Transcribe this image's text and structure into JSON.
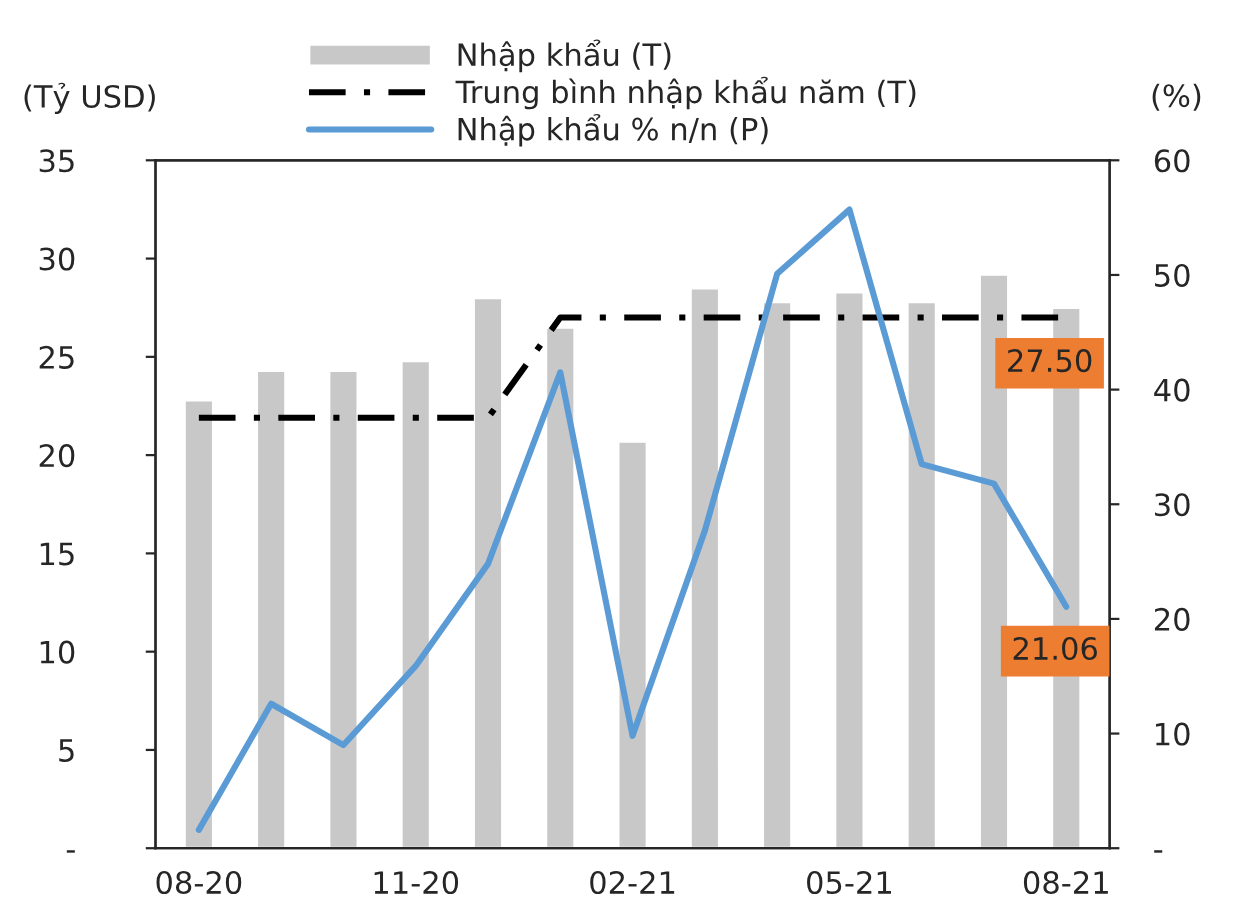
{
  "chart_data": {
    "type": "bar",
    "categories": [
      "08-20",
      null,
      null,
      "11-20",
      null,
      null,
      "02-21",
      null,
      null,
      "05-21",
      null,
      null,
      "08-21"
    ],
    "ylabel": "(Tỷ USD)",
    "y2label": "(%)",
    "series": [
      {
        "name": "Nhập khẩu (T)",
        "color": "#c8c8c8",
        "values": [
          22.8,
          24.3,
          24.3,
          24.8,
          28.0,
          26.5,
          20.7,
          28.5,
          27.8,
          28.3,
          27.8,
          29.2,
          27.5
        ],
        "value_labels": [
          null,
          null,
          null,
          null,
          null,
          null,
          null,
          null,
          null,
          null,
          null,
          null,
          "27.50"
        ]
      },
      {
        "name": "Trung bình nhập khẩu năm (T)",
        "type": "line",
        "color": "#000000",
        "line_style": "dashed",
        "values": [
          21.9,
          21.9,
          21.9,
          21.9,
          21.9,
          27.0,
          27.0,
          27.0,
          27.0,
          27.0,
          27.0,
          27.0,
          27.0
        ]
      },
      {
        "name": "Nhập khẩu % n/n (P)",
        "type": "line",
        "axis": "y2",
        "color": "#5b9bd5",
        "line_style": "solid",
        "values": [
          1.6,
          12.6,
          9.0,
          15.9,
          24.8,
          41.5,
          9.8,
          27.7,
          50.1,
          55.7,
          33.5,
          31.8,
          21.06
        ],
        "value_labels": [
          null,
          null,
          null,
          null,
          null,
          null,
          null,
          null,
          null,
          null,
          null,
          null,
          "21.06"
        ]
      }
    ],
    "ylim": [
      0,
      35
    ],
    "yticks": [
      {
        "value": 0,
        "label": "-"
      },
      5,
      10,
      15,
      20,
      25,
      30,
      35
    ],
    "y2lim": [
      0,
      60
    ],
    "y2ticks": [
      {
        "value": 0,
        "label": "-"
      },
      10,
      20,
      30,
      40,
      50,
      60
    ],
    "legend": "top",
    "grid": false
  }
}
